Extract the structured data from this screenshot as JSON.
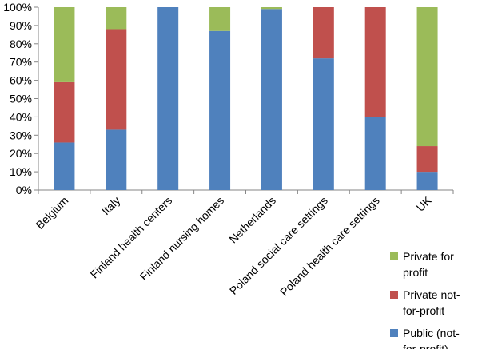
{
  "chart_data": {
    "type": "bar",
    "stacked": true,
    "title": "",
    "xlabel": "",
    "ylabel": "",
    "ylim": [
      0,
      100
    ],
    "y_ticks": [
      "0%",
      "10%",
      "20%",
      "30%",
      "40%",
      "50%",
      "60%",
      "70%",
      "80%",
      "90%",
      "100%"
    ],
    "grid": false,
    "legend_position": "bottom-right",
    "categories": [
      "Belgium",
      "Italy",
      "Finland health centers",
      "Finland nursing homes",
      "Netherlands",
      "Poland social care settings",
      "Poland health care settings",
      "UK"
    ],
    "series": [
      {
        "name": "Public (not-for-profit)",
        "color": "#4f81bd",
        "values": [
          26,
          33,
          100,
          87,
          99,
          72,
          40,
          10
        ]
      },
      {
        "name": "Private not-for-profit",
        "color": "#c0504d",
        "values": [
          33,
          55,
          0,
          0,
          0,
          28,
          60,
          14
        ]
      },
      {
        "name": "Private for profit",
        "color": "#9bbb59",
        "values": [
          41,
          12,
          0,
          13,
          1,
          0,
          0,
          76
        ]
      }
    ],
    "legend_order": [
      "Private for profit",
      "Private not-for-profit",
      "Public (not-for-profit)"
    ]
  }
}
